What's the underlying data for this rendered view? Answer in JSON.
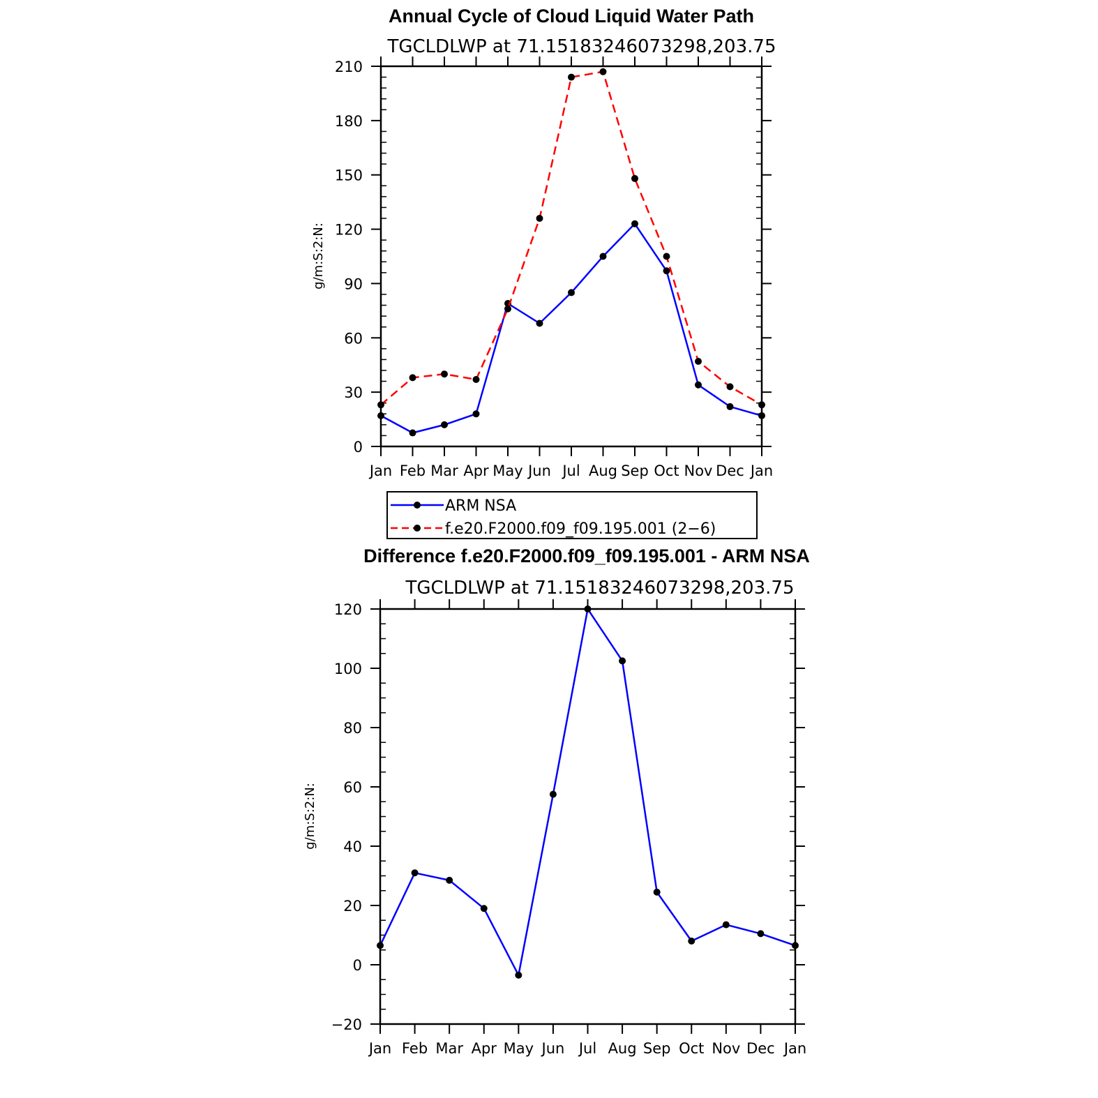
{
  "chart_data": [
    {
      "type": "line",
      "title": "Annual Cycle of Cloud Liquid Water Path",
      "subtitle": "TGCLDLWP at 71.15183246073298,203.75",
      "ylabel": "g/m:S:2:N:",
      "xlabel": "",
      "categories": [
        "Jan",
        "Feb",
        "Mar",
        "Apr",
        "May",
        "Jun",
        "Jul",
        "Aug",
        "Sep",
        "Oct",
        "Nov",
        "Dec",
        "Jan"
      ],
      "ylim": [
        0,
        210
      ],
      "yticks": [
        "0",
        "30",
        "60",
        "90",
        "120",
        "150",
        "180",
        "210"
      ],
      "grid": false,
      "legend_position": "below",
      "series": [
        {
          "name": "ARM NSA",
          "color": "#0000ff",
          "dash": "solid",
          "values": [
            17,
            7.5,
            12,
            18,
            79,
            68,
            85,
            105,
            123,
            97,
            34,
            22,
            17
          ]
        },
        {
          "name": "f.e20.F2000.f09_f09.195.001 (2−6)",
          "color": "#ff0000",
          "dash": "dashed",
          "values": [
            23,
            38,
            40,
            37,
            76,
            126,
            204,
            207,
            148,
            105,
            47,
            33,
            23
          ]
        }
      ]
    },
    {
      "type": "line",
      "title": "Difference f.e20.F2000.f09_f09.195.001 - ARM NSA",
      "subtitle": "TGCLDLWP at 71.15183246073298,203.75",
      "ylabel": "g/m:S:2:N:",
      "xlabel": "",
      "categories": [
        "Jan",
        "Feb",
        "Mar",
        "Apr",
        "May",
        "Jun",
        "Jul",
        "Aug",
        "Sep",
        "Oct",
        "Nov",
        "Dec",
        "Jan"
      ],
      "ylim": [
        -20,
        120
      ],
      "yticks": [
        "−20",
        "0",
        "20",
        "40",
        "60",
        "80",
        "100",
        "120"
      ],
      "grid": false,
      "series": [
        {
          "color": "#0000ff",
          "dash": "solid",
          "values": [
            6.5,
            31,
            28.5,
            19,
            -3.5,
            57.5,
            120,
            102.5,
            24.5,
            8,
            13.5,
            10.5,
            6.5
          ]
        }
      ]
    }
  ]
}
